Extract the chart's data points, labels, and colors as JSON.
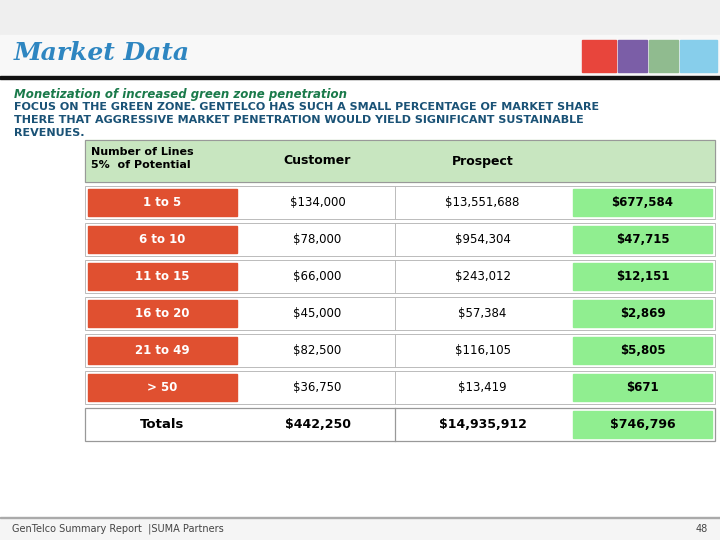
{
  "title": "Market Data",
  "subtitle": "Monetization of increased green zone penetration",
  "body_text": "FOCUS ON THE GREEN ZONE. GENTELCO HAS SUCH A SMALL PERCENTAGE OF MARKET SHARE\nTHERE THAT AGGRESSIVE MARKET PENETRATION WOULD YIELD SIGNIFICANT SUSTAINABLE\nREVENUES.",
  "header_colors": [
    "#E8453C",
    "#7B5EA7",
    "#90BB8F",
    "#87CEEB"
  ],
  "title_color": "#2E86C1",
  "subtitle_color": "#1A7A4A",
  "body_text_color": "#1A5276",
  "bg_color": "#FFFFFF",
  "header_bar_color": "#C8E6C0",
  "row_labels": [
    "1 to 5",
    "6 to 10",
    "11 to 15",
    "16 to 20",
    "21 to 49",
    "> 50"
  ],
  "row_label_color": "#E05030",
  "row_label_text_color": "#FFFFFF",
  "customer_values": [
    "$134,000",
    "$78,000",
    "$66,000",
    "$45,000",
    "$82,500",
    "$36,750"
  ],
  "prospect_values": [
    "$13,551,688",
    "$954,304",
    "$243,012",
    "$57,384",
    "$116,105",
    "$13,419"
  ],
  "highlight_values": [
    "$677,584",
    "$47,715",
    "$12,151",
    "$2,869",
    "$5,805",
    "$671"
  ],
  "highlight_color": "#90EE90",
  "totals_label": "Totals",
  "totals_customer": "$442,250",
  "totals_prospect": "$14,935,912",
  "totals_highlight": "$746,796",
  "footer_text": "GenTelco Summary Report  |SUMA Partners",
  "footer_page": "48",
  "top_stripe_color": "#FFFFFF",
  "title_bar_bg": "#F5F5F5",
  "divider_color": "#222222"
}
